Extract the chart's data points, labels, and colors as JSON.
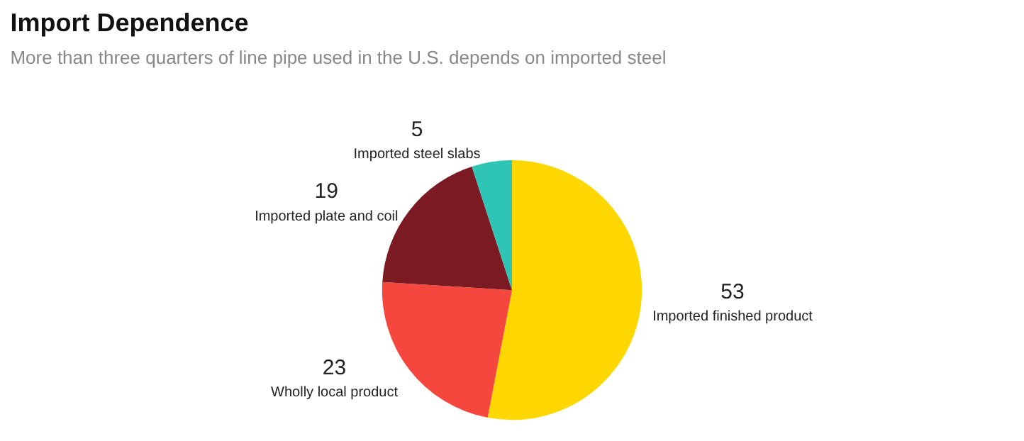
{
  "chart_data": {
    "type": "pie",
    "title": "Import Dependence",
    "subtitle": "More than three quarters of line pipe used in the U.S. depends on imported steel",
    "categories": [
      "Imported finished product",
      "Wholly local product",
      "Imported plate and coil",
      "Imported steel slabs"
    ],
    "values": [
      53,
      23,
      19,
      5
    ],
    "colors": [
      "#ffd700",
      "#f5473e",
      "#7b1a22",
      "#2ec4b6"
    ],
    "data_labels": true,
    "legend": false
  }
}
